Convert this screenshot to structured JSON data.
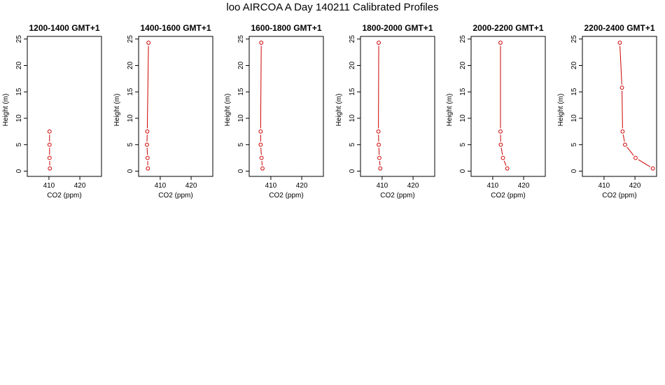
{
  "main_title": "loo AIRCOA A  Day 140211  Calibrated Profiles",
  "chart_data": [
    {
      "type": "line",
      "title": "1200-1400 GMT+1",
      "xlabel": "CO2 (ppm)",
      "ylabel": "Height (m)",
      "xlim": [
        403,
        427
      ],
      "ylim": [
        -1,
        25.5
      ],
      "xticks": [
        410,
        420
      ],
      "yticks": [
        0,
        5,
        10,
        15,
        20,
        25
      ],
      "color": "#cc0000",
      "series": [
        {
          "x": [
            410.2,
            410.2,
            410.2,
            410.3
          ],
          "y": [
            7.5,
            5,
            2.5,
            0.5
          ]
        }
      ]
    },
    {
      "type": "line",
      "title": "1400-1600 GMT+1",
      "xlabel": "CO2 (ppm)",
      "ylabel": "Height (m)",
      "xlim": [
        403,
        427
      ],
      "ylim": [
        -1,
        25.5
      ],
      "xticks": [
        410,
        420
      ],
      "yticks": [
        0,
        5,
        10,
        15,
        20,
        25
      ],
      "color": "#cc0000",
      "series": [
        {
          "x": [
            406.2,
            405.8,
            405.7,
            405.9,
            406.0
          ],
          "y": [
            24.3,
            7.5,
            5,
            2.5,
            0.5
          ]
        }
      ]
    },
    {
      "type": "line",
      "title": "1600-1800 GMT+1",
      "xlabel": "CO2 (ppm)",
      "ylabel": "Height (m)",
      "xlim": [
        403,
        427
      ],
      "ylim": [
        -1,
        25.5
      ],
      "xticks": [
        410,
        420
      ],
      "yticks": [
        0,
        5,
        10,
        15,
        20,
        25
      ],
      "color": "#cc0000",
      "series": [
        {
          "x": [
            406.9,
            406.7,
            406.7,
            407.0,
            407.3
          ],
          "y": [
            24.3,
            7.5,
            5,
            2.5,
            0.5
          ]
        }
      ]
    },
    {
      "type": "line",
      "title": "1800-2000 GMT+1",
      "xlabel": "CO2 (ppm)",
      "ylabel": "Height (m)",
      "xlim": [
        403,
        427
      ],
      "ylim": [
        -1,
        25.5
      ],
      "xticks": [
        410,
        420
      ],
      "yticks": [
        0,
        5,
        10,
        15,
        20,
        25
      ],
      "color": "#cc0000",
      "series": [
        {
          "x": [
            408.9,
            408.8,
            408.9,
            409.1,
            409.4
          ],
          "y": [
            24.3,
            7.5,
            5,
            2.5,
            0.5
          ]
        }
      ]
    },
    {
      "type": "line",
      "title": "2000-2200 GMT+1",
      "xlabel": "CO2 (ppm)",
      "ylabel": "Height (m)",
      "xlim": [
        403,
        427
      ],
      "ylim": [
        -1,
        25.5
      ],
      "xticks": [
        410,
        420
      ],
      "yticks": [
        0,
        5,
        10,
        15,
        20,
        25
      ],
      "color": "#cc0000",
      "series": [
        {
          "x": [
            412.5,
            412.5,
            412.6,
            413.3,
            414.7
          ],
          "y": [
            24.3,
            7.5,
            5,
            2.5,
            0.5
          ]
        }
      ]
    },
    {
      "type": "line",
      "title": "2200-2400 GMT+1",
      "xlabel": "CO2 (ppm)",
      "ylabel": "Height (m)",
      "xlim": [
        403,
        427
      ],
      "ylim": [
        -1,
        25.5
      ],
      "xticks": [
        410,
        420
      ],
      "yticks": [
        0,
        5,
        10,
        15,
        20,
        25
      ],
      "color": "#cc0000",
      "series": [
        {
          "x": [
            415.1,
            415.8,
            416.0,
            416.8,
            420.2,
            425.8
          ],
          "y": [
            24.3,
            15.8,
            7.5,
            5,
            2.5,
            0.5
          ]
        }
      ]
    }
  ]
}
